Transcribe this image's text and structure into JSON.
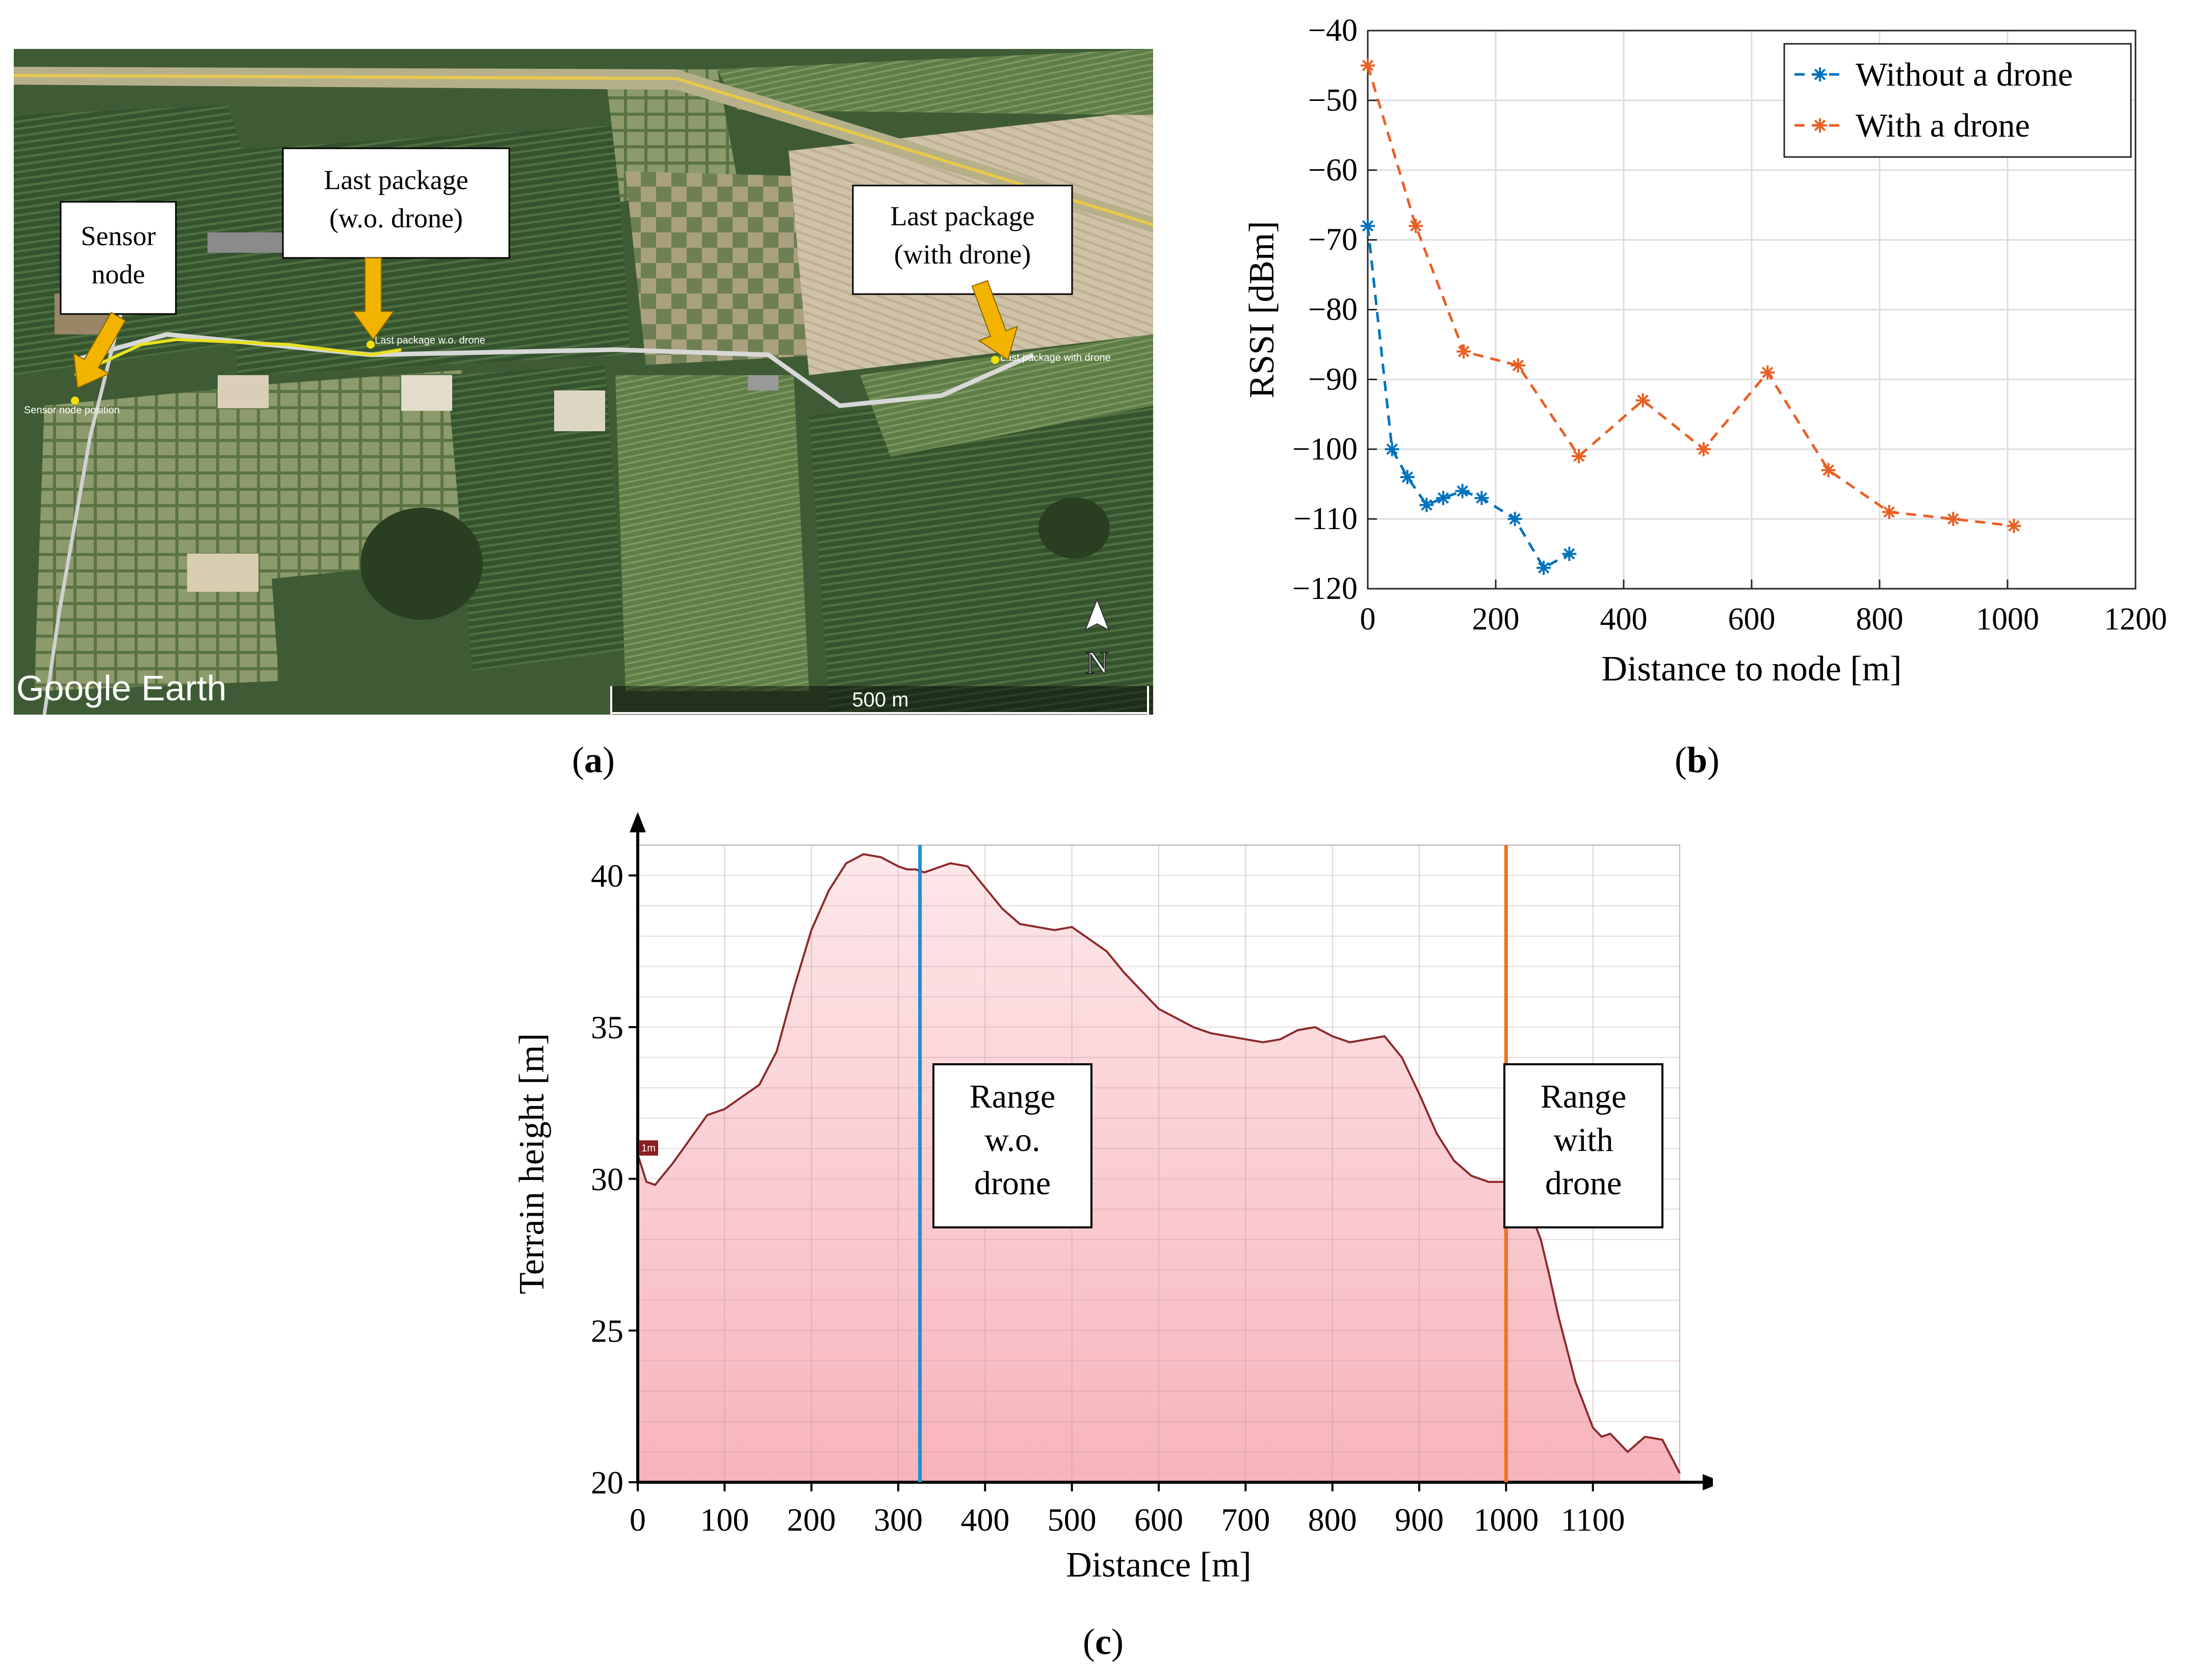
{
  "panel_a": {
    "caption_letter": "a",
    "brand": "Google Earth",
    "scale_label": "500 m",
    "north_label": "N",
    "callouts": {
      "sensor_node": [
        "Sensor",
        "node"
      ],
      "last_wo": [
        "Last package",
        "(w.o. drone)"
      ],
      "last_with": [
        "Last package",
        "(with drone)"
      ]
    },
    "map_labels": {
      "sensor_pos": "Sensor node position",
      "last_wo": "Last package w.o. drone",
      "last_with": "Last package with drone"
    }
  },
  "panel_b": {
    "caption_letter": "b"
  },
  "panel_c": {
    "caption_letter": "c",
    "inline_marker": "1m"
  },
  "colors": {
    "without": "#0072bd",
    "with": "#ea5f24",
    "arrow": "#f2b400",
    "terrain_fill_top": "#fde8ea",
    "terrain_fill_bottom": "#f7b3bb",
    "terrain_line": "#8b2a2a",
    "range_wo": "#1f8fd0",
    "range_with": "#ee7318"
  },
  "chart_data": [
    {
      "type": "line",
      "xlabel": "Distance to node [m]",
      "ylabel": "RSSI [dBm]",
      "xlim": [
        0,
        1200
      ],
      "ylim": [
        -120,
        -40
      ],
      "xticks": [
        0,
        200,
        400,
        600,
        800,
        1000,
        1200
      ],
      "yticks": [
        -40,
        -50,
        -60,
        -70,
        -80,
        -90,
        -100,
        -110,
        -120
      ],
      "grid": true,
      "legend_position": "top-right",
      "marker": "asterisk",
      "series": [
        {
          "name": "Without a drone",
          "x": [
            0,
            38,
            62,
            92,
            118,
            148,
            178,
            230,
            275,
            315
          ],
          "y": [
            -68,
            -100,
            -104,
            -108,
            -107,
            -106,
            -107,
            -110,
            -117,
            -115
          ]
        },
        {
          "name": "With a drone",
          "x": [
            0,
            75,
            150,
            235,
            330,
            430,
            525,
            625,
            720,
            815,
            915,
            1010
          ],
          "y": [
            -45,
            -68,
            -86,
            -88,
            -101,
            -93,
            -100,
            -89,
            -103,
            -109,
            -110,
            -111
          ]
        }
      ]
    },
    {
      "type": "area",
      "xlabel": "Distance [m]",
      "ylabel": "Terrain height [m]",
      "xlim": [
        0,
        1200
      ],
      "ylim": [
        20,
        41
      ],
      "xticks": [
        0,
        100,
        200,
        300,
        400,
        500,
        600,
        700,
        800,
        900,
        1000,
        1100
      ],
      "yticks": [
        20,
        25,
        30,
        35,
        40
      ],
      "grid": true,
      "x": [
        0,
        10,
        20,
        40,
        60,
        80,
        100,
        120,
        140,
        160,
        180,
        200,
        220,
        240,
        260,
        280,
        300,
        310,
        320,
        330,
        340,
        360,
        380,
        400,
        420,
        440,
        460,
        480,
        500,
        520,
        540,
        560,
        580,
        600,
        620,
        640,
        660,
        680,
        700,
        720,
        740,
        760,
        780,
        800,
        820,
        840,
        860,
        880,
        900,
        920,
        940,
        960,
        980,
        1000,
        1020,
        1040,
        1050,
        1060,
        1080,
        1100,
        1110,
        1120,
        1140,
        1160,
        1180,
        1200
      ],
      "y": [
        30.8,
        29.9,
        29.8,
        30.5,
        31.3,
        32.1,
        32.3,
        32.7,
        33.1,
        34.2,
        36.3,
        38.2,
        39.5,
        40.4,
        40.7,
        40.6,
        40.3,
        40.2,
        40.2,
        40.1,
        40.2,
        40.4,
        40.3,
        39.6,
        38.9,
        38.4,
        38.3,
        38.2,
        38.3,
        37.9,
        37.5,
        36.8,
        36.2,
        35.6,
        35.3,
        35.0,
        34.8,
        34.7,
        34.6,
        34.5,
        34.6,
        34.9,
        35.0,
        34.7,
        34.5,
        34.6,
        34.7,
        34.0,
        32.8,
        31.5,
        30.6,
        30.1,
        29.9,
        29.9,
        29.5,
        28.0,
        26.8,
        25.5,
        23.3,
        21.8,
        21.5,
        21.6,
        21.0,
        21.5,
        21.4,
        20.3
      ],
      "vertical_markers": [
        {
          "x": 325,
          "label": [
            "Range",
            "w.o.",
            "drone"
          ]
        },
        {
          "x": 1000,
          "label": [
            "Range",
            "with",
            "drone"
          ]
        }
      ]
    }
  ]
}
